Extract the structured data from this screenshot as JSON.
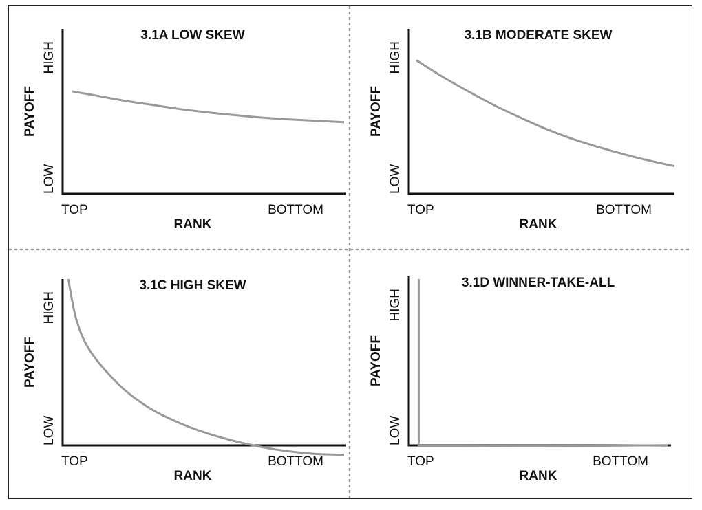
{
  "chart_data": [
    {
      "type": "line",
      "title": "3.1A LOW SKEW",
      "xlabel": "RANK",
      "ylabel": "PAYOFF",
      "x_ticks": [
        "TOP",
        "BOTTOM"
      ],
      "y_ticks": [
        "LOW",
        "HIGH"
      ],
      "x": [
        0,
        0.1,
        0.2,
        0.3,
        0.4,
        0.5,
        0.6,
        0.7,
        0.8,
        0.9,
        1.0
      ],
      "y": [
        0.63,
        0.6,
        0.57,
        0.545,
        0.52,
        0.5,
        0.483,
        0.468,
        0.457,
        0.448,
        0.44
      ],
      "xlim": [
        0,
        1
      ],
      "ylim": [
        0,
        1
      ],
      "grid": false,
      "line_color": "#999999"
    },
    {
      "type": "line",
      "title": "3.1B MODERATE SKEW",
      "xlabel": "RANK",
      "ylabel": "PAYOFF",
      "x_ticks": [
        "TOP",
        "BOTTOM"
      ],
      "y_ticks": [
        "LOW",
        "HIGH"
      ],
      "x": [
        0,
        0.1,
        0.2,
        0.3,
        0.4,
        0.5,
        0.6,
        0.7,
        0.8,
        0.9,
        1.0
      ],
      "y": [
        0.82,
        0.72,
        0.63,
        0.545,
        0.47,
        0.4,
        0.34,
        0.29,
        0.245,
        0.205,
        0.17
      ],
      "xlim": [
        0,
        1
      ],
      "ylim": [
        0,
        1
      ],
      "grid": false,
      "line_color": "#999999"
    },
    {
      "type": "line",
      "title": "3.1C HIGH SKEW",
      "xlabel": "RANK",
      "ylabel": "PAYOFF",
      "x_ticks": [
        "TOP",
        "BOTTOM"
      ],
      "y_ticks": [
        "LOW",
        "HIGH"
      ],
      "x": [
        0.02,
        0.05,
        0.1,
        0.2,
        0.3,
        0.4,
        0.5,
        0.6,
        0.7,
        0.8,
        0.9,
        1.0
      ],
      "y": [
        1.0,
        0.77,
        0.6,
        0.42,
        0.3,
        0.22,
        0.16,
        0.115,
        0.08,
        0.055,
        0.04,
        0.035
      ],
      "xlim": [
        0,
        1
      ],
      "ylim": [
        0,
        1
      ],
      "grid": false,
      "line_color": "#999999"
    },
    {
      "type": "line",
      "title": "3.1D WINNER-TAKE-ALL",
      "xlabel": "RANK",
      "ylabel": "PAYOFF",
      "x_ticks": [
        "TOP",
        "BOTTOM"
      ],
      "y_ticks": [
        "LOW",
        "HIGH"
      ],
      "x": [
        0.03,
        0.03,
        0.2,
        0.4,
        0.6,
        0.8,
        0.98
      ],
      "y": [
        1.0,
        0.065,
        0.065,
        0.066,
        0.067,
        0.068,
        0.07
      ],
      "xlim": [
        0,
        1
      ],
      "ylim": [
        0,
        1
      ],
      "grid": false,
      "line_color": "#999999"
    }
  ]
}
